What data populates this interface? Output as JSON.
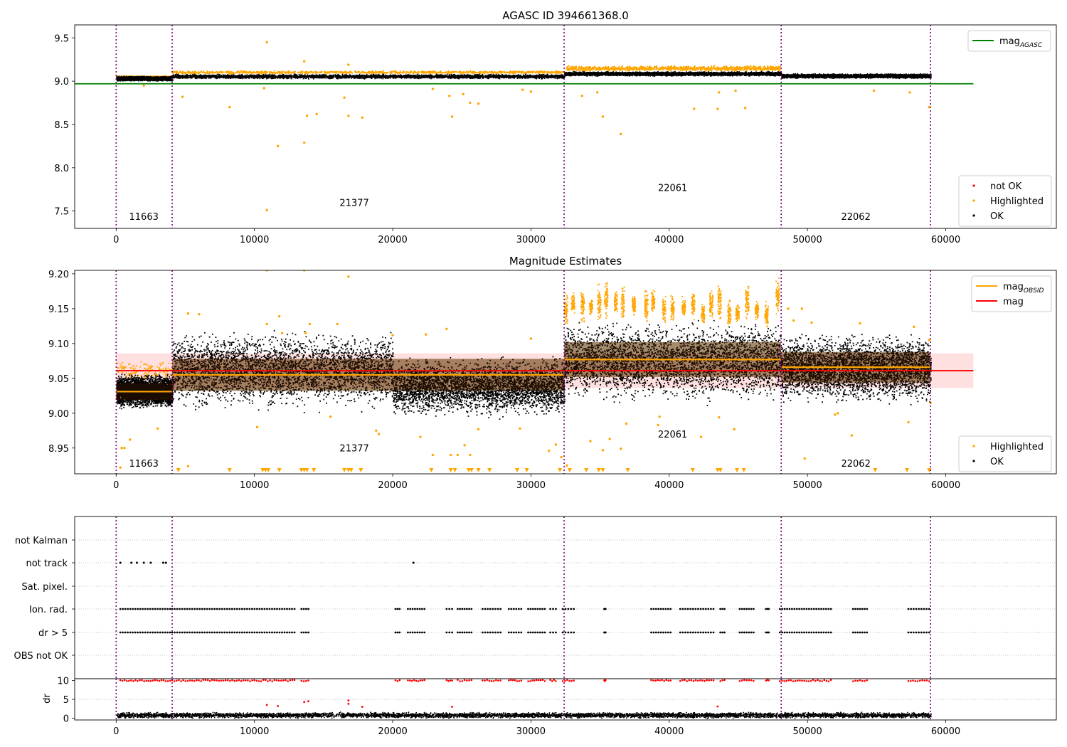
{
  "figure": {
    "obsid_labels": [
      "11663",
      "21377",
      "22061",
      "22062"
    ],
    "obsid_boundaries": [
      0,
      4050,
      32400,
      48100,
      58900
    ]
  },
  "chart_data": [
    {
      "type": "scatter",
      "title": "AGASC ID 394661368.0",
      "xlabel": "",
      "ylabel": "",
      "xlim": [
        -3000,
        68000
      ],
      "ylim": [
        7.3,
        9.65
      ],
      "xticks": [
        "0",
        "10000",
        "20000",
        "30000",
        "40000",
        "50000",
        "60000"
      ],
      "yticks": [
        "7.5",
        "8.0",
        "8.5",
        "9.0",
        "9.5"
      ],
      "obsid_label_y": [
        7.4,
        7.56,
        7.73,
        7.4
      ],
      "reference_line": {
        "name": "mag",
        "subscript": "AGASC",
        "value": 8.97,
        "x_range": [
          0,
          62000
        ],
        "color": "#008000"
      },
      "segments": [
        {
          "x_range": [
            0,
            4050
          ],
          "ok_center": 9.035
        },
        {
          "x_range": [
            4050,
            32400
          ],
          "ok_center": 9.06
        },
        {
          "x_range": [
            32400,
            48100
          ],
          "ok_center": 9.09
        },
        {
          "x_range": [
            48100,
            58900
          ],
          "ok_center": 9.065
        }
      ],
      "highlighted_points": [
        [
          10900,
          9.45
        ],
        [
          13600,
          9.23
        ],
        [
          16800,
          9.19
        ],
        [
          4800,
          8.82
        ],
        [
          8200,
          8.7
        ],
        [
          10700,
          8.92
        ],
        [
          13800,
          8.6
        ],
        [
          14500,
          8.62
        ],
        [
          16500,
          8.81
        ],
        [
          16800,
          8.6
        ],
        [
          17800,
          8.58
        ],
        [
          11700,
          8.25
        ],
        [
          13600,
          8.29
        ],
        [
          10900,
          7.51
        ],
        [
          24300,
          8.59
        ],
        [
          25600,
          8.75
        ],
        [
          26200,
          8.74
        ],
        [
          22900,
          8.91
        ],
        [
          24100,
          8.83
        ],
        [
          25100,
          8.85
        ],
        [
          29400,
          8.9
        ],
        [
          30000,
          8.88
        ],
        [
          35200,
          8.59
        ],
        [
          36500,
          8.39
        ],
        [
          33700,
          8.83
        ],
        [
          34800,
          8.87
        ],
        [
          41800,
          8.68
        ],
        [
          43500,
          8.68
        ],
        [
          43600,
          8.87
        ],
        [
          45500,
          8.69
        ],
        [
          44800,
          8.89
        ],
        [
          54800,
          8.89
        ],
        [
          57400,
          8.87
        ],
        [
          58800,
          8.7
        ],
        [
          2000,
          8.95
        ]
      ],
      "highlighted_clusters": [
        {
          "x_range": [
            32500,
            48000
          ],
          "y_range": [
            9.12,
            9.19
          ]
        },
        {
          "x_range": [
            0,
            4050
          ],
          "y_range": [
            9.04,
            9.07
          ]
        },
        {
          "x_range": [
            4050,
            32400
          ],
          "y_range": [
            9.09,
            9.13
          ]
        }
      ],
      "legends": [
        {
          "position": "top-right",
          "entries": [
            {
              "name": "mag",
              "subscript": "AGASC",
              "marker": "line",
              "color": "#008000"
            }
          ]
        },
        {
          "position": "lower-right",
          "entries": [
            {
              "name": "not OK",
              "marker": "dot",
              "color": "#ff0000"
            },
            {
              "name": "Highlighted",
              "marker": "dot",
              "color": "#ffa500"
            },
            {
              "name": "OK",
              "marker": "dot",
              "color": "#000000"
            }
          ]
        }
      ]
    },
    {
      "type": "scatter",
      "title": "Magnitude Estimates",
      "xlabel": "",
      "ylabel": "",
      "xlim": [
        -3000,
        68000
      ],
      "ylim": [
        8.913,
        9.205
      ],
      "xticks": [
        "0",
        "10000",
        "20000",
        "30000",
        "40000",
        "50000",
        "60000"
      ],
      "yticks": [
        "8.95",
        "9.00",
        "9.05",
        "9.10",
        "9.15",
        "9.20"
      ],
      "obsid_label_y": [
        8.923,
        8.945,
        8.965,
        8.923
      ],
      "mag_line": {
        "name": "mag",
        "value": 9.061,
        "band": [
          9.036,
          9.086
        ],
        "x_range": [
          0,
          62000
        ],
        "color": "#ff0000"
      },
      "obsid_mags": [
        {
          "name": "11663",
          "x_range": [
            0,
            4050
          ],
          "value": 9.031,
          "band": [
            9.019,
            9.043
          ]
        },
        {
          "name": "21377",
          "x_range": [
            4050,
            32400
          ],
          "value": 9.055,
          "band": [
            9.032,
            9.078
          ]
        },
        {
          "name": "22061",
          "x_range": [
            32400,
            48100
          ],
          "value": 9.077,
          "band": [
            9.052,
            9.102
          ]
        },
        {
          "name": "22062",
          "x_range": [
            48100,
            58900
          ],
          "value": 9.066,
          "band": [
            9.044,
            9.088
          ]
        }
      ],
      "ok_spread": [
        {
          "x_range": [
            0,
            4050
          ],
          "y_range": [
            9.005,
            9.06
          ]
        },
        {
          "x_range": [
            4050,
            20000
          ],
          "y_range": [
            9.0,
            9.125
          ]
        },
        {
          "x_range": [
            20000,
            32400
          ],
          "y_range": [
            8.99,
            9.085
          ]
        },
        {
          "x_range": [
            32400,
            48100
          ],
          "y_range": [
            9.01,
            9.14
          ]
        },
        {
          "x_range": [
            48100,
            58900
          ],
          "y_range": [
            9.01,
            9.12
          ]
        }
      ],
      "highlighted_points": [
        [
          5200,
          9.143
        ],
        [
          6000,
          9.142
        ],
        [
          10900,
          9.205
        ],
        [
          13600,
          9.205
        ],
        [
          16800,
          9.196
        ],
        [
          11800,
          9.139
        ],
        [
          10900,
          9.128
        ],
        [
          14000,
          9.128
        ],
        [
          16000,
          9.128
        ],
        [
          23900,
          9.121
        ],
        [
          12000,
          9.115
        ],
        [
          13700,
          9.115
        ],
        [
          20000,
          9.112
        ],
        [
          22400,
          9.113
        ],
        [
          30000,
          9.107
        ],
        [
          48600,
          9.15
        ],
        [
          49600,
          9.15
        ],
        [
          49000,
          9.133
        ],
        [
          50300,
          9.13
        ],
        [
          53800,
          9.129
        ],
        [
          57700,
          9.124
        ],
        [
          58800,
          9.105
        ],
        [
          52200,
          9.0
        ],
        [
          52000,
          8.998
        ],
        [
          58900,
          9.015
        ],
        [
          53200,
          8.968
        ],
        [
          57300,
          8.987
        ],
        [
          3000,
          8.978
        ],
        [
          10200,
          8.98
        ],
        [
          15500,
          8.995
        ],
        [
          18800,
          8.975
        ],
        [
          19000,
          8.97
        ],
        [
          22000,
          8.966
        ],
        [
          22900,
          8.94
        ],
        [
          24200,
          8.94
        ],
        [
          24700,
          8.94
        ],
        [
          25600,
          8.94
        ],
        [
          25200,
          8.954
        ],
        [
          26200,
          8.977
        ],
        [
          29200,
          8.978
        ],
        [
          31300,
          8.946
        ],
        [
          31800,
          8.955
        ],
        [
          32200,
          8.937
        ],
        [
          32600,
          8.925
        ],
        [
          34300,
          8.96
        ],
        [
          35200,
          8.947
        ],
        [
          35700,
          8.963
        ],
        [
          36500,
          8.949
        ],
        [
          36900,
          8.985
        ],
        [
          39200,
          8.983
        ],
        [
          39300,
          8.995
        ],
        [
          42300,
          8.966
        ],
        [
          43600,
          8.994
        ],
        [
          44700,
          8.977
        ],
        [
          49800,
          8.935
        ],
        [
          1000,
          8.962
        ],
        [
          400,
          8.95
        ],
        [
          600,
          8.95
        ],
        [
          300,
          8.922
        ],
        [
          5200,
          8.924
        ]
      ],
      "highlighted_columns": [
        32500,
        33000,
        33700,
        34300,
        34900,
        35400,
        36100,
        36600,
        37400,
        38300,
        38800,
        39600,
        40200,
        41000,
        41700,
        42400,
        43000,
        43600,
        44300,
        44900,
        45600,
        46300,
        47000,
        47800
      ],
      "highlighted_column_range": [
        9.12,
        9.2
      ],
      "offscale_low_x": [
        4500,
        8200,
        10600,
        10800,
        11000,
        11800,
        13400,
        13600,
        13800,
        14300,
        16500,
        16800,
        17000,
        17700,
        22800,
        24200,
        24500,
        25500,
        25700,
        26200,
        27000,
        29000,
        29700,
        32100,
        32800,
        34000,
        34900,
        35200,
        37000,
        41700,
        43500,
        43700,
        44900,
        45400,
        54900,
        57200,
        58800
      ],
      "legends": [
        {
          "position": "top-right",
          "entries": [
            {
              "name": "mag",
              "subscript": "OBSID",
              "marker": "line",
              "color": "#ffa500"
            },
            {
              "name": "mag",
              "marker": "line",
              "color": "#ff0000"
            }
          ]
        },
        {
          "position": "lower-right",
          "entries": [
            {
              "name": "Highlighted",
              "marker": "dot",
              "color": "#ffa500"
            },
            {
              "name": "OK",
              "marker": "dot",
              "color": "#000000"
            }
          ]
        }
      ]
    },
    {
      "type": "scatter",
      "title": "",
      "xlabel": "",
      "ylabel": "",
      "xlim": [
        -3000,
        68000
      ],
      "xticks": [
        "0",
        "10000",
        "20000",
        "30000",
        "40000",
        "50000",
        "60000"
      ],
      "flag_rows": [
        "not Kalman",
        "not track",
        "Sat. pixel.",
        "Ion. rad.",
        "dr > 5",
        "OBS not OK"
      ],
      "flag_points": {
        "not track": [
          300,
          1100,
          1500,
          2000,
          2500,
          3400,
          3600,
          21500
        ],
        "ion_rad_and_dr_ranges": [
          [
            300,
            3900
          ],
          [
            4050,
            12900
          ],
          [
            13400,
            13900
          ],
          [
            20200,
            20500
          ],
          [
            21100,
            22300
          ],
          [
            23900,
            24300
          ],
          [
            24700,
            25700
          ],
          [
            26500,
            27800
          ],
          [
            28400,
            29300
          ],
          [
            29800,
            31000
          ],
          [
            31400,
            31800
          ],
          [
            32300,
            33100
          ],
          [
            35300,
            35400
          ],
          [
            38700,
            40100
          ],
          [
            40800,
            43200
          ],
          [
            43700,
            44000
          ],
          [
            45100,
            46100
          ],
          [
            47000,
            47200
          ],
          [
            48000,
            51700
          ],
          [
            53300,
            54300
          ],
          [
            57300,
            58800
          ]
        ]
      }
    },
    {
      "type": "scatter",
      "title": "",
      "xlabel": "",
      "ylabel": "dr",
      "xlim": [
        -3000,
        68000
      ],
      "ylim": [
        -0.5,
        10.5
      ],
      "xticks": [
        "0",
        "10000",
        "20000",
        "30000",
        "40000",
        "50000",
        "60000"
      ],
      "yticks": [
        "0",
        "5",
        "10"
      ],
      "ok_band": [
        0.0,
        1.8
      ],
      "not_ok_capped_value": 10,
      "not_ok_points": [
        [
          10900,
          3.5
        ],
        [
          11700,
          3.2
        ],
        [
          13600,
          4.3
        ],
        [
          13900,
          4.5
        ],
        [
          16800,
          4.7
        ],
        [
          16800,
          3.8
        ],
        [
          17800,
          3.0
        ],
        [
          24300,
          3.0
        ],
        [
          43500,
          3.1
        ]
      ]
    }
  ]
}
